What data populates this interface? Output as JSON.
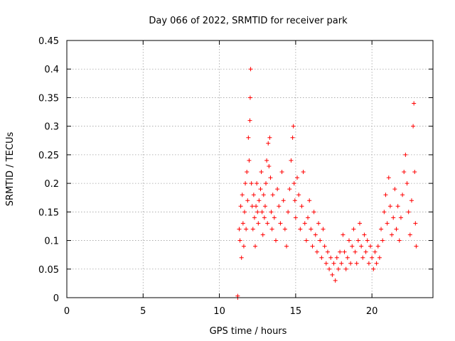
{
  "chart_data": {
    "type": "scatter",
    "title": "Day 066 of 2022, SRMTID for receiver park",
    "xlabel": "GPS time / hours",
    "ylabel": "SRMTID / TECUs",
    "xlim": [
      0,
      24
    ],
    "ylim": [
      0,
      0.45
    ],
    "xticks": [
      0,
      5,
      10,
      15,
      20
    ],
    "yticks": [
      0,
      0.05,
      0.1,
      0.15,
      0.2,
      0.25,
      0.3,
      0.35,
      0.4,
      0.45
    ],
    "ytick_labels": [
      "0",
      "0.05",
      "0.1",
      "0.15",
      "0.2",
      "0.25",
      "0.3",
      "0.35",
      "0.4",
      "0.45"
    ],
    "grid": true,
    "marker": "+",
    "color": "#ff0000",
    "series": [
      {
        "name": "SRMTID",
        "points": [
          [
            11.2,
            0.0
          ],
          [
            11.2,
            0.003
          ],
          [
            11.3,
            0.12
          ],
          [
            11.35,
            0.1
          ],
          [
            11.4,
            0.16
          ],
          [
            11.45,
            0.07
          ],
          [
            11.5,
            0.18
          ],
          [
            11.55,
            0.13
          ],
          [
            11.6,
            0.09
          ],
          [
            11.65,
            0.15
          ],
          [
            11.7,
            0.2
          ],
          [
            11.75,
            0.12
          ],
          [
            11.8,
            0.22
          ],
          [
            11.85,
            0.17
          ],
          [
            11.9,
            0.28
          ],
          [
            11.95,
            0.24
          ],
          [
            12.0,
            0.31
          ],
          [
            12.02,
            0.35
          ],
          [
            12.05,
            0.4
          ],
          [
            12.1,
            0.2
          ],
          [
            12.15,
            0.16
          ],
          [
            12.2,
            0.12
          ],
          [
            12.25,
            0.18
          ],
          [
            12.3,
            0.14
          ],
          [
            12.35,
            0.09
          ],
          [
            12.4,
            0.16
          ],
          [
            12.45,
            0.2
          ],
          [
            12.5,
            0.15
          ],
          [
            12.55,
            0.13
          ],
          [
            12.6,
            0.17
          ],
          [
            12.7,
            0.19
          ],
          [
            12.75,
            0.22
          ],
          [
            12.8,
            0.15
          ],
          [
            12.85,
            0.11
          ],
          [
            12.9,
            0.18
          ],
          [
            12.95,
            0.14
          ],
          [
            13.0,
            0.16
          ],
          [
            13.05,
            0.2
          ],
          [
            13.1,
            0.24
          ],
          [
            13.15,
            0.13
          ],
          [
            13.2,
            0.27
          ],
          [
            13.25,
            0.23
          ],
          [
            13.3,
            0.28
          ],
          [
            13.35,
            0.21
          ],
          [
            13.4,
            0.15
          ],
          [
            13.45,
            0.12
          ],
          [
            13.5,
            0.18
          ],
          [
            13.6,
            0.14
          ],
          [
            13.7,
            0.1
          ],
          [
            13.8,
            0.19
          ],
          [
            13.9,
            0.16
          ],
          [
            14.0,
            0.13
          ],
          [
            14.1,
            0.22
          ],
          [
            14.2,
            0.17
          ],
          [
            14.3,
            0.12
          ],
          [
            14.4,
            0.09
          ],
          [
            14.5,
            0.15
          ],
          [
            14.6,
            0.19
          ],
          [
            14.7,
            0.24
          ],
          [
            14.8,
            0.28
          ],
          [
            14.85,
            0.3
          ],
          [
            14.9,
            0.2
          ],
          [
            14.95,
            0.17
          ],
          [
            15.0,
            0.14
          ],
          [
            15.1,
            0.21
          ],
          [
            15.2,
            0.18
          ],
          [
            15.3,
            0.12
          ],
          [
            15.4,
            0.16
          ],
          [
            15.5,
            0.22
          ],
          [
            15.6,
            0.13
          ],
          [
            15.7,
            0.1
          ],
          [
            15.8,
            0.14
          ],
          [
            15.9,
            0.17
          ],
          [
            16.0,
            0.12
          ],
          [
            16.1,
            0.09
          ],
          [
            16.2,
            0.15
          ],
          [
            16.3,
            0.11
          ],
          [
            16.4,
            0.08
          ],
          [
            16.5,
            0.13
          ],
          [
            16.6,
            0.1
          ],
          [
            16.7,
            0.07
          ],
          [
            16.8,
            0.12
          ],
          [
            16.9,
            0.09
          ],
          [
            17.0,
            0.06
          ],
          [
            17.1,
            0.08
          ],
          [
            17.2,
            0.05
          ],
          [
            17.3,
            0.07
          ],
          [
            17.4,
            0.04
          ],
          [
            17.5,
            0.06
          ],
          [
            17.6,
            0.03
          ],
          [
            17.7,
            0.07
          ],
          [
            17.8,
            0.05
          ],
          [
            17.9,
            0.08
          ],
          [
            18.0,
            0.06
          ],
          [
            18.1,
            0.11
          ],
          [
            18.2,
            0.08
          ],
          [
            18.3,
            0.05
          ],
          [
            18.4,
            0.07
          ],
          [
            18.5,
            0.1
          ],
          [
            18.6,
            0.06
          ],
          [
            18.7,
            0.09
          ],
          [
            18.8,
            0.12
          ],
          [
            18.9,
            0.08
          ],
          [
            19.0,
            0.06
          ],
          [
            19.1,
            0.1
          ],
          [
            19.2,
            0.13
          ],
          [
            19.3,
            0.09
          ],
          [
            19.4,
            0.07
          ],
          [
            19.5,
            0.11
          ],
          [
            19.6,
            0.08
          ],
          [
            19.7,
            0.1
          ],
          [
            19.8,
            0.06
          ],
          [
            19.9,
            0.09
          ],
          [
            20.0,
            0.07
          ],
          [
            20.1,
            0.05
          ],
          [
            20.2,
            0.08
          ],
          [
            20.3,
            0.06
          ],
          [
            20.4,
            0.09
          ],
          [
            20.5,
            0.07
          ],
          [
            20.6,
            0.12
          ],
          [
            20.7,
            0.1
          ],
          [
            20.8,
            0.15
          ],
          [
            20.9,
            0.18
          ],
          [
            21.0,
            0.13
          ],
          [
            21.1,
            0.21
          ],
          [
            21.2,
            0.16
          ],
          [
            21.3,
            0.11
          ],
          [
            21.4,
            0.14
          ],
          [
            21.5,
            0.19
          ],
          [
            21.6,
            0.12
          ],
          [
            21.7,
            0.16
          ],
          [
            21.8,
            0.1
          ],
          [
            21.9,
            0.14
          ],
          [
            22.0,
            0.18
          ],
          [
            22.1,
            0.22
          ],
          [
            22.2,
            0.25
          ],
          [
            22.3,
            0.2
          ],
          [
            22.4,
            0.15
          ],
          [
            22.5,
            0.11
          ],
          [
            22.6,
            0.17
          ],
          [
            22.7,
            0.3
          ],
          [
            22.75,
            0.34
          ],
          [
            22.8,
            0.22
          ],
          [
            22.85,
            0.13
          ],
          [
            22.9,
            0.09
          ]
        ]
      }
    ]
  }
}
